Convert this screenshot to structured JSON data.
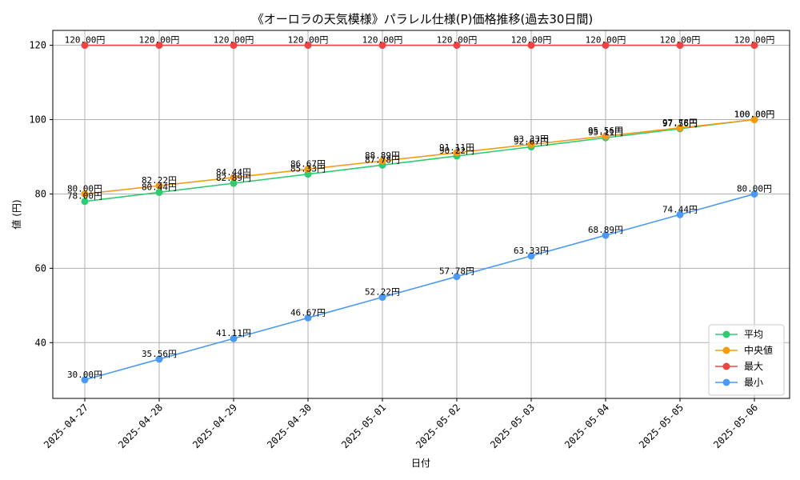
{
  "chart_data": {
    "type": "line",
    "title": "《オーロラの天気模様》パラレル仕様(P)価格推移(過去30日間)",
    "xlabel": "日付",
    "ylabel": "値 (円)",
    "ylim": [
      25,
      124
    ],
    "yticks": [
      40,
      60,
      80,
      100,
      120
    ],
    "grid": true,
    "legend_position": "lower-right",
    "value_suffix": "円",
    "x": [
      "2025-04-27",
      "2025-04-28",
      "2025-04-29",
      "2025-04-30",
      "2025-05-01",
      "2025-05-02",
      "2025-05-03",
      "2025-05-04",
      "2025-05-05",
      "2025-05-06"
    ],
    "series": [
      {
        "name": "平均",
        "color": "#2ecc71",
        "values": [
          78.0,
          80.44,
          82.89,
          85.33,
          87.78,
          90.22,
          92.67,
          95.11,
          97.56,
          100.0
        ]
      },
      {
        "name": "中央値",
        "color": "#f39c12",
        "values": [
          80.0,
          82.22,
          84.44,
          86.67,
          88.89,
          91.11,
          93.33,
          95.56,
          97.78,
          100.0
        ]
      },
      {
        "name": "最大",
        "color": "#ef4444",
        "values": [
          120.0,
          120.0,
          120.0,
          120.0,
          120.0,
          120.0,
          120.0,
          120.0,
          120.0,
          120.0
        ]
      },
      {
        "name": "最小",
        "color": "#4a9af5",
        "values": [
          30.0,
          35.56,
          41.11,
          46.67,
          52.22,
          57.78,
          63.33,
          68.89,
          74.44,
          80.0
        ]
      }
    ]
  }
}
